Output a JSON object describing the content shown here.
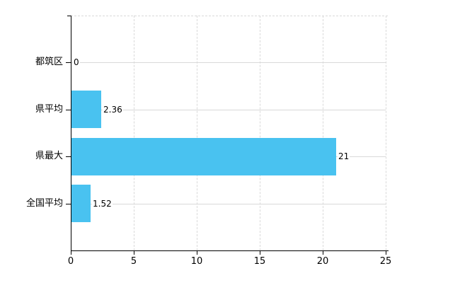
{
  "chart_data": {
    "type": "bar",
    "orientation": "horizontal",
    "title": "",
    "xlabel": "",
    "ylabel": "",
    "categories": [
      "都筑区",
      "県平均",
      "県最大",
      "全国平均"
    ],
    "values": [
      0,
      2.36,
      21,
      1.52
    ],
    "value_labels": [
      "0",
      "2.36",
      "21",
      "1.52"
    ],
    "xlim": [
      0,
      25
    ],
    "xticks": [
      0,
      5,
      10,
      15,
      20,
      25
    ],
    "grid": true,
    "legend": false,
    "colors": {
      "bar": "#49C2F0",
      "grid": "#d9d9d9",
      "axis": "#000000",
      "text": "#000000",
      "background": "#ffffff"
    }
  }
}
